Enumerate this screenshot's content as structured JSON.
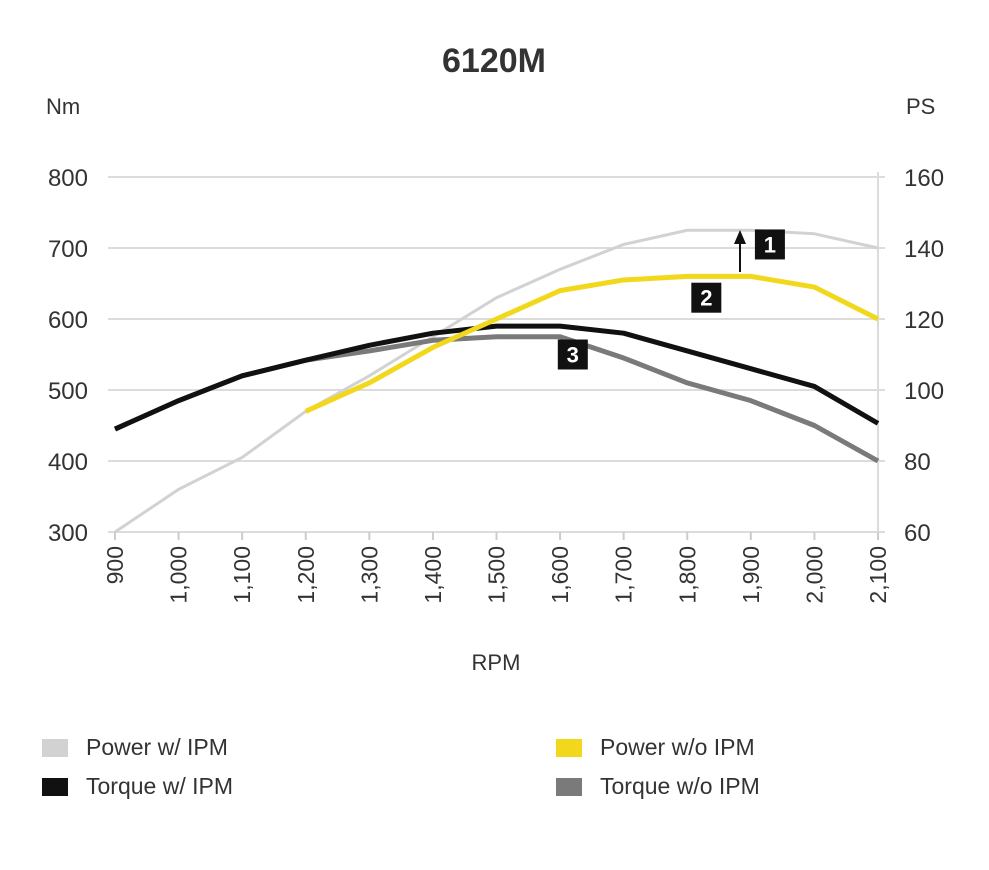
{
  "chart_data": {
    "type": "line",
    "title": "6120M",
    "xlabel": "RPM",
    "ylabel_left": "Nm",
    "ylabel_right": "PS",
    "x": [
      900,
      1000,
      1100,
      1200,
      1300,
      1400,
      1500,
      1600,
      1700,
      1800,
      1900,
      2000,
      2100
    ],
    "x_tick_labels": [
      "900",
      "1,000",
      "1,100",
      "1,200",
      "1,300",
      "1,400",
      "1,500",
      "1,600",
      "1,700",
      "1,800",
      "1,900",
      "2,000",
      "2,100"
    ],
    "ylim_left": [
      300,
      800
    ],
    "ylim_right": [
      60,
      160
    ],
    "y_ticks_left": [
      "300",
      "400",
      "500",
      "600",
      "700",
      "800"
    ],
    "y_ticks_right": [
      "60",
      "80",
      "100",
      "120",
      "140",
      "160"
    ],
    "grid": true,
    "legend_placement": "bottom",
    "series": [
      {
        "name": "Power w/ IPM",
        "axis": "right",
        "color": "#d2d2d2",
        "values": [
          60,
          72,
          81,
          94,
          104,
          115,
          126,
          134,
          141,
          145,
          145,
          144,
          140
        ]
      },
      {
        "name": "Power w/o IPM",
        "axis": "right",
        "color": "#f2d81c",
        "values": [
          null,
          null,
          null,
          94,
          102,
          112,
          120,
          128,
          131,
          132,
          132,
          129,
          120
        ]
      },
      {
        "name": "Torque w/ IPM",
        "axis": "left",
        "color": "#111111",
        "values": [
          445,
          485,
          520,
          542,
          563,
          580,
          590,
          590,
          580,
          555,
          530,
          505,
          453
        ]
      },
      {
        "name": "Torque w/o IPM",
        "axis": "left",
        "color": "#7a7a7a",
        "values": [
          445,
          485,
          520,
          542,
          555,
          570,
          575,
          575,
          545,
          510,
          485,
          450,
          400
        ]
      }
    ],
    "annotations": [
      {
        "label": "1",
        "x": 1930,
        "y_right": 141
      },
      {
        "label": "2",
        "x": 1830,
        "y_right": 126
      },
      {
        "label": "3",
        "x": 1620,
        "y_left": 550
      }
    ]
  }
}
